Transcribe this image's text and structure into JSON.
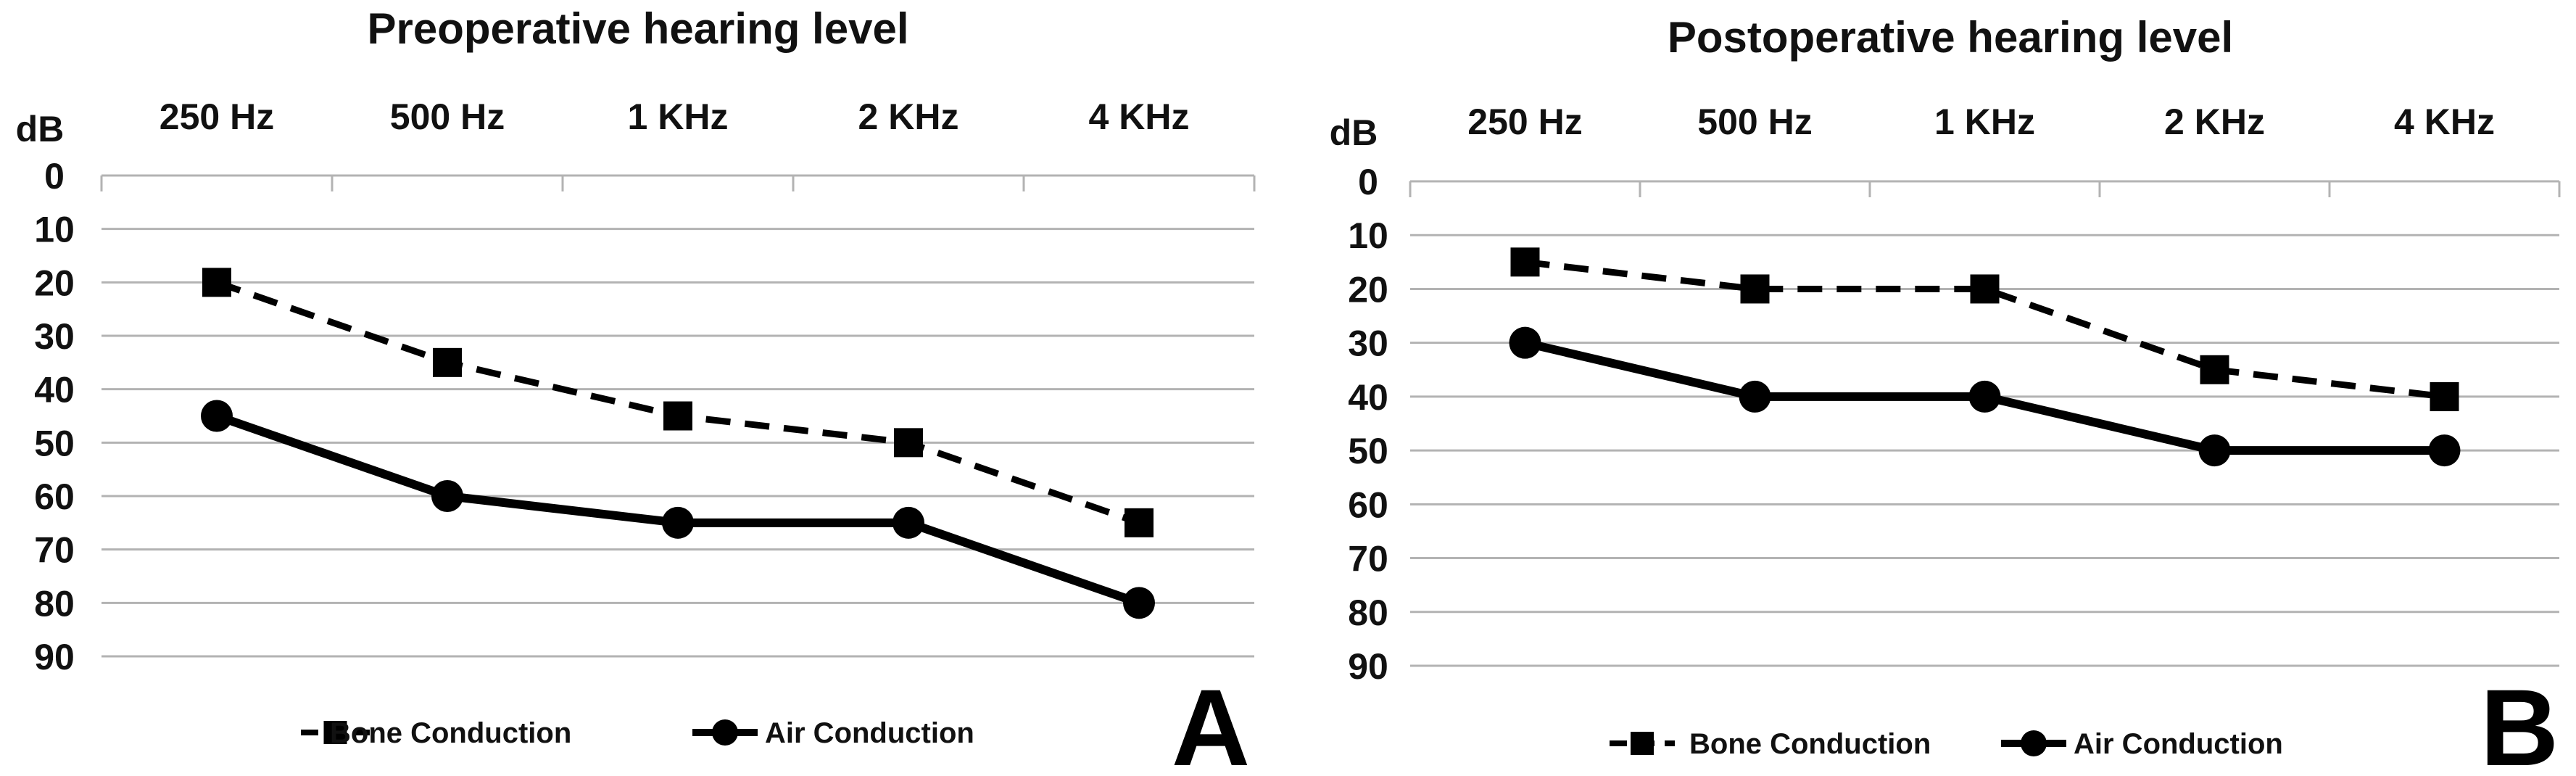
{
  "chart_data": [
    {
      "type": "line",
      "title": "Preoperative hearing level",
      "ylabel": "dB",
      "categories": [
        "250 Hz",
        "500 Hz",
        "1 KHz",
        "2 KHz",
        "4 KHz"
      ],
      "yticks": [
        0,
        10,
        20,
        30,
        40,
        50,
        60,
        70,
        80,
        90
      ],
      "ylim": [
        0,
        90
      ],
      "y_inverted": true,
      "series": [
        {
          "name": "Bone Conduction",
          "values": [
            20,
            35,
            45,
            50,
            65
          ],
          "marker": "square",
          "line": "dashed"
        },
        {
          "name": "Air Conduction",
          "values": [
            45,
            60,
            65,
            65,
            80
          ],
          "marker": "circle",
          "line": "solid"
        }
      ],
      "panel_label": "A"
    },
    {
      "type": "line",
      "title": "Postoperative hearing level",
      "ylabel": "dB",
      "categories": [
        "250 Hz",
        "500 Hz",
        "1 KHz",
        "2 KHz",
        "4 KHz"
      ],
      "yticks": [
        0,
        10,
        20,
        30,
        40,
        50,
        60,
        70,
        80,
        90
      ],
      "ylim": [
        0,
        90
      ],
      "y_inverted": true,
      "series": [
        {
          "name": "Bone Conduction",
          "values": [
            15,
            20,
            20,
            35,
            40
          ],
          "marker": "square",
          "line": "dashed"
        },
        {
          "name": "Air Conduction",
          "values": [
            30,
            40,
            40,
            50,
            50
          ],
          "marker": "circle",
          "line": "solid"
        }
      ],
      "panel_label": "B"
    }
  ],
  "colors": {
    "line": "#000000",
    "grid": "#b3b3b3",
    "text": "#111111"
  }
}
